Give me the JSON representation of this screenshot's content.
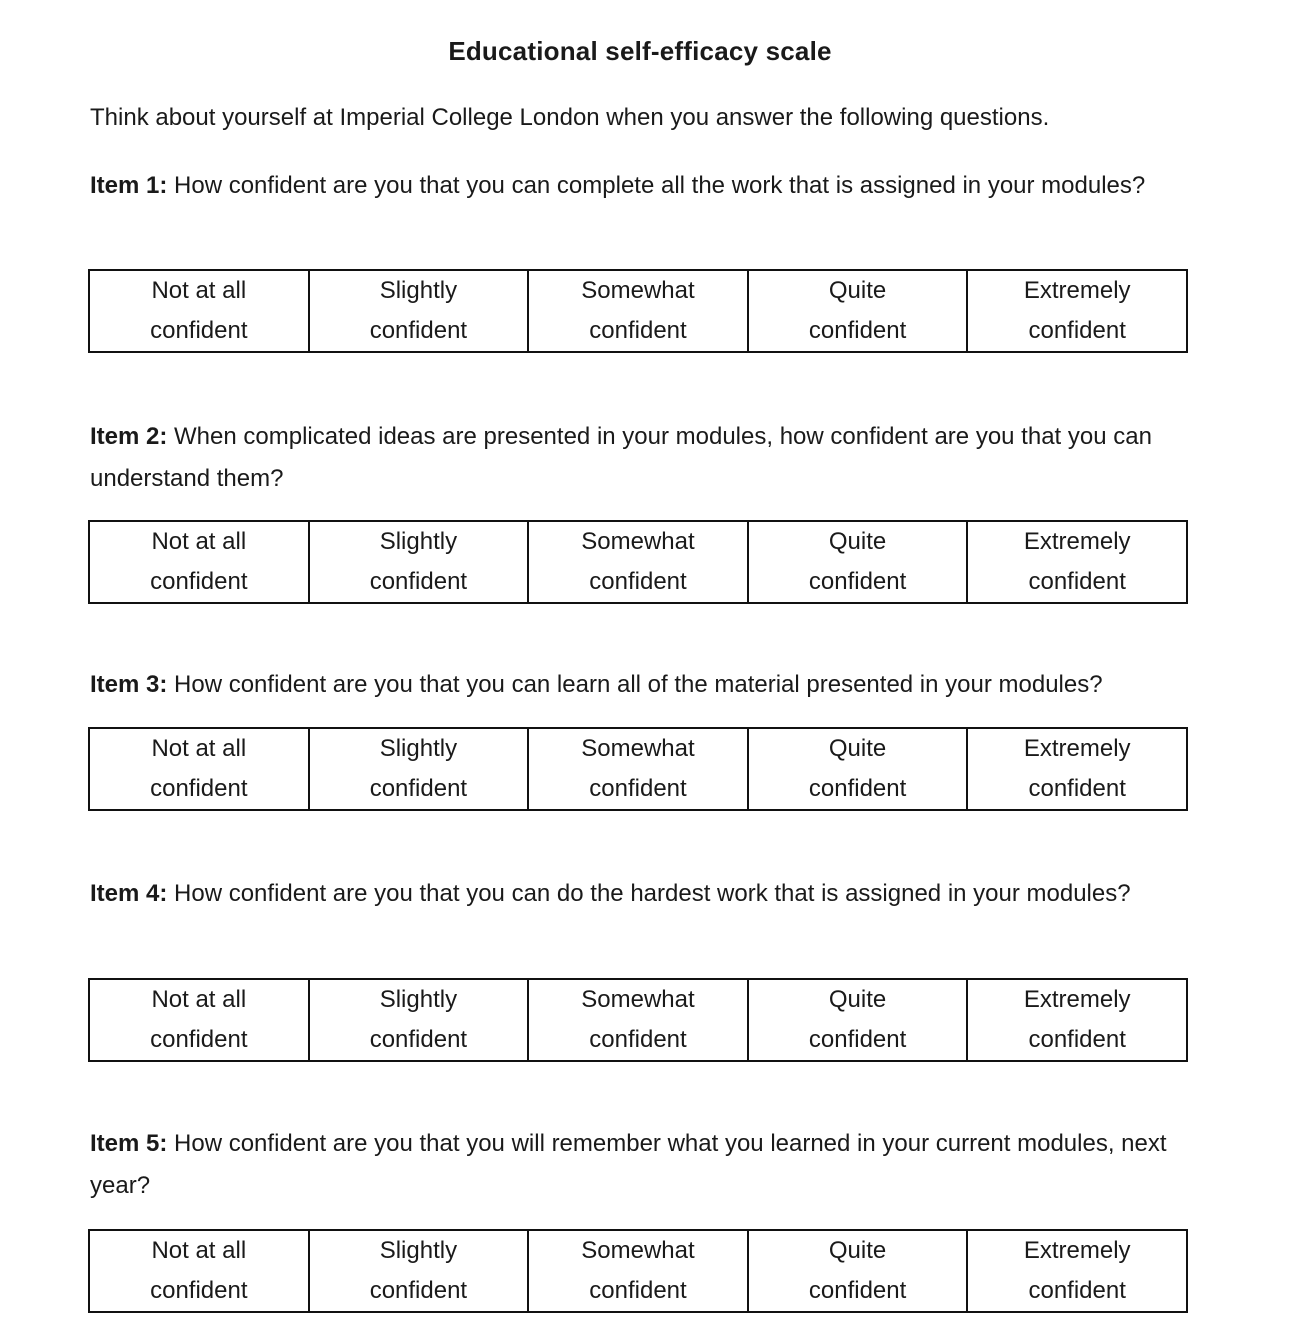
{
  "title": "Educational self-efficacy scale",
  "intro": "Think about yourself at Imperial College London when you answer the following questions.",
  "options": [
    "Not at all\nconfident",
    "Slightly\nconfident",
    "Somewhat\nconfident",
    "Quite\nconfident",
    "Extremely\nconfident"
  ],
  "items": [
    {
      "label": "Item 1:",
      "question": "How confident are you that you can complete all the work that is assigned in your modules?"
    },
    {
      "label": "Item 2:",
      "question": "When complicated ideas are presented in your modules, how confident are you that you can understand them?"
    },
    {
      "label": "Item 3:",
      "question": "How confident are you that you can learn all of the material presented in your modules?"
    },
    {
      "label": "Item 4:",
      "question": "How confident are you that you can do the hardest work that is assigned in your modules?"
    },
    {
      "label": "Item 5:",
      "question": "How confident are you that you will remember what you learned in your current modules, next year?"
    }
  ]
}
